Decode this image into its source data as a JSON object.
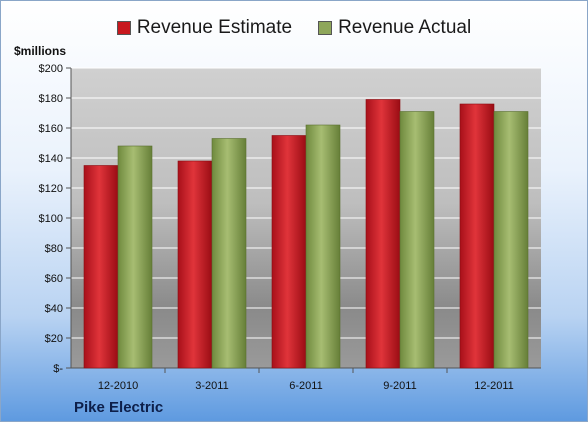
{
  "chart_data": {
    "type": "bar",
    "ylabel": "$millions",
    "categories": [
      "12-2010",
      "3-2011",
      "6-2011",
      "9-2011",
      "12-2011"
    ],
    "series": [
      {
        "name": "Revenue Estimate",
        "values": [
          135,
          138,
          155,
          179,
          176
        ],
        "color": "#c8181e"
      },
      {
        "name": "Revenue Actual",
        "values": [
          148,
          153,
          162,
          171,
          171
        ],
        "color": "#8ea65a"
      }
    ],
    "ylim": [
      0,
      200
    ],
    "yticks": [
      {
        "value": 0,
        "label": "$-"
      },
      {
        "value": 20,
        "label": "$20"
      },
      {
        "value": 40,
        "label": "$40"
      },
      {
        "value": 60,
        "label": "$60"
      },
      {
        "value": 80,
        "label": "$80"
      },
      {
        "value": 100,
        "label": "$100"
      },
      {
        "value": 120,
        "label": "$120"
      },
      {
        "value": 140,
        "label": "$140"
      },
      {
        "value": 160,
        "label": "$160"
      },
      {
        "value": 180,
        "label": "$180"
      },
      {
        "value": 200,
        "label": "$200"
      }
    ],
    "legend_position": "top-center",
    "grid": true
  },
  "footer": {
    "company": "Pike Electric"
  }
}
